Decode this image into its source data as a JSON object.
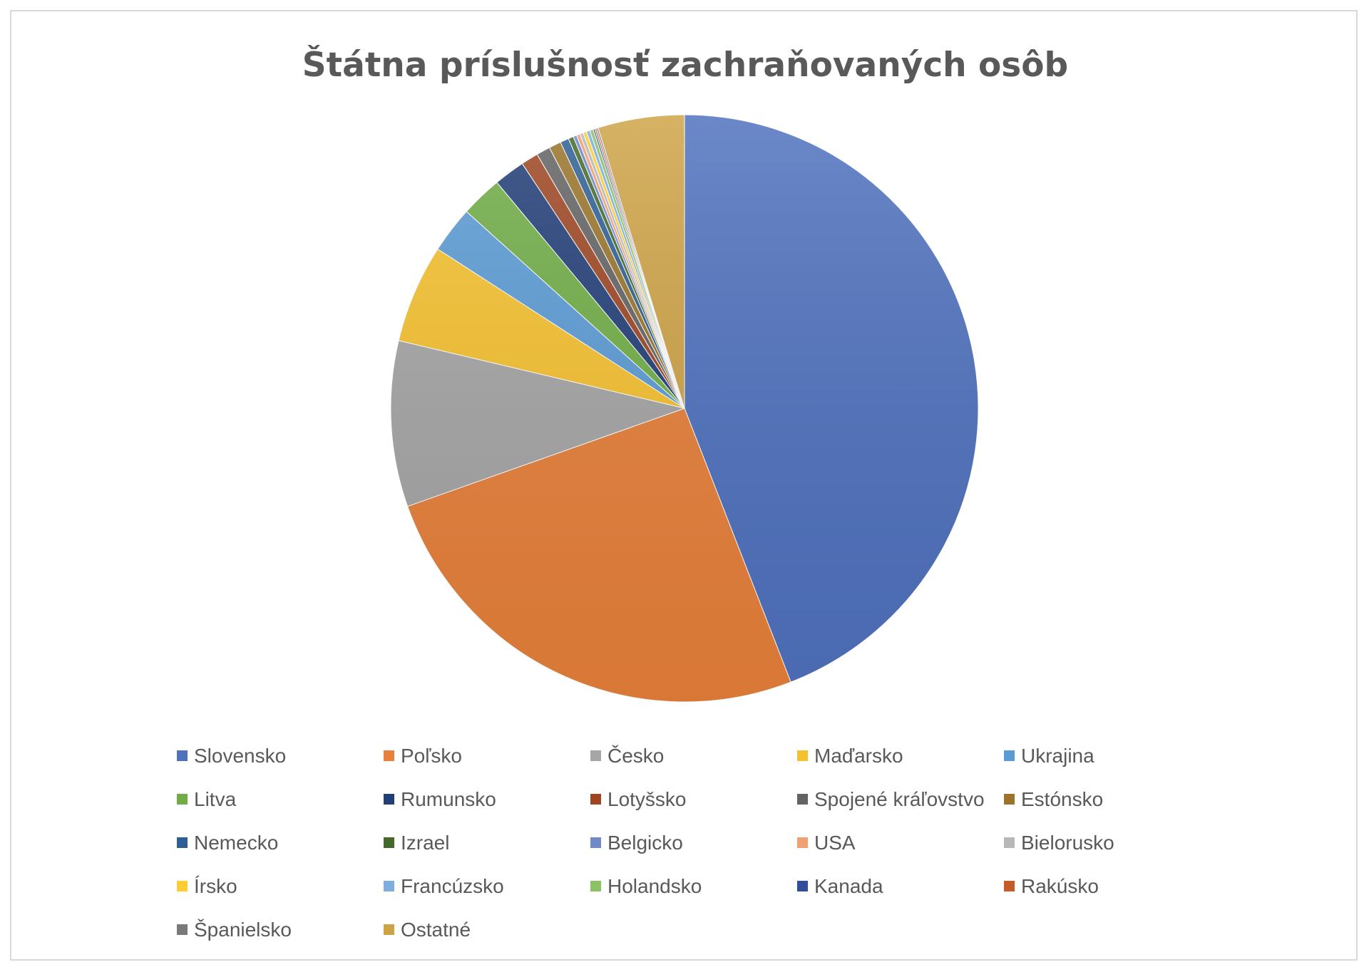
{
  "chart_data": {
    "type": "pie",
    "title": "Štátna príslušnosť zachraňovaných osôb",
    "legend_position": "bottom",
    "start_angle_deg": 0,
    "direction": "clockwise",
    "slices": [
      {
        "label": "Slovensko",
        "value": 46.4,
        "color": "#4f71be"
      },
      {
        "label": "Poľsko",
        "value": 26.8,
        "color": "#e7803a"
      },
      {
        "label": "Česko",
        "value": 9.6,
        "color": "#a5a5a5"
      },
      {
        "label": "Maďarsko",
        "value": 5.7,
        "color": "#f6c12f"
      },
      {
        "label": "Ukrajina",
        "value": 2.7,
        "color": "#5b9bd5"
      },
      {
        "label": "Litva",
        "value": 2.4,
        "color": "#70ad47"
      },
      {
        "label": "Rumunsko",
        "value": 1.8,
        "color": "#223e77"
      },
      {
        "label": "Lotyšsko",
        "value": 1.0,
        "color": "#9d4622"
      },
      {
        "label": "Spojené kráľovstvo",
        "value": 0.8,
        "color": "#636363"
      },
      {
        "label": "Estónsko",
        "value": 0.7,
        "color": "#997429"
      },
      {
        "label": "Nemecko",
        "value": 0.5,
        "color": "#2e5f94"
      },
      {
        "label": "Izrael",
        "value": 0.3,
        "color": "#45692b"
      },
      {
        "label": "Belgicko",
        "value": 0.2,
        "color": "#7089c9"
      },
      {
        "label": "USA",
        "value": 0.2,
        "color": "#f0a071"
      },
      {
        "label": "Bielorusko",
        "value": 0.2,
        "color": "#b8b8b8"
      },
      {
        "label": "Írsko",
        "value": 0.2,
        "color": "#ffcd33"
      },
      {
        "label": "Francúzsko",
        "value": 0.2,
        "color": "#7cafdd"
      },
      {
        "label": "Holandsko",
        "value": 0.2,
        "color": "#8cc168"
      },
      {
        "label": "Kanada",
        "value": 0.1,
        "color": "#2f4f9a"
      },
      {
        "label": "Rakúsko",
        "value": 0.1,
        "color": "#c55a2a"
      },
      {
        "label": "Španielsko",
        "value": 0.1,
        "color": "#7a7a7a"
      },
      {
        "label": "Ostatné",
        "value": 5.0,
        "color": "#cea347"
      }
    ]
  }
}
